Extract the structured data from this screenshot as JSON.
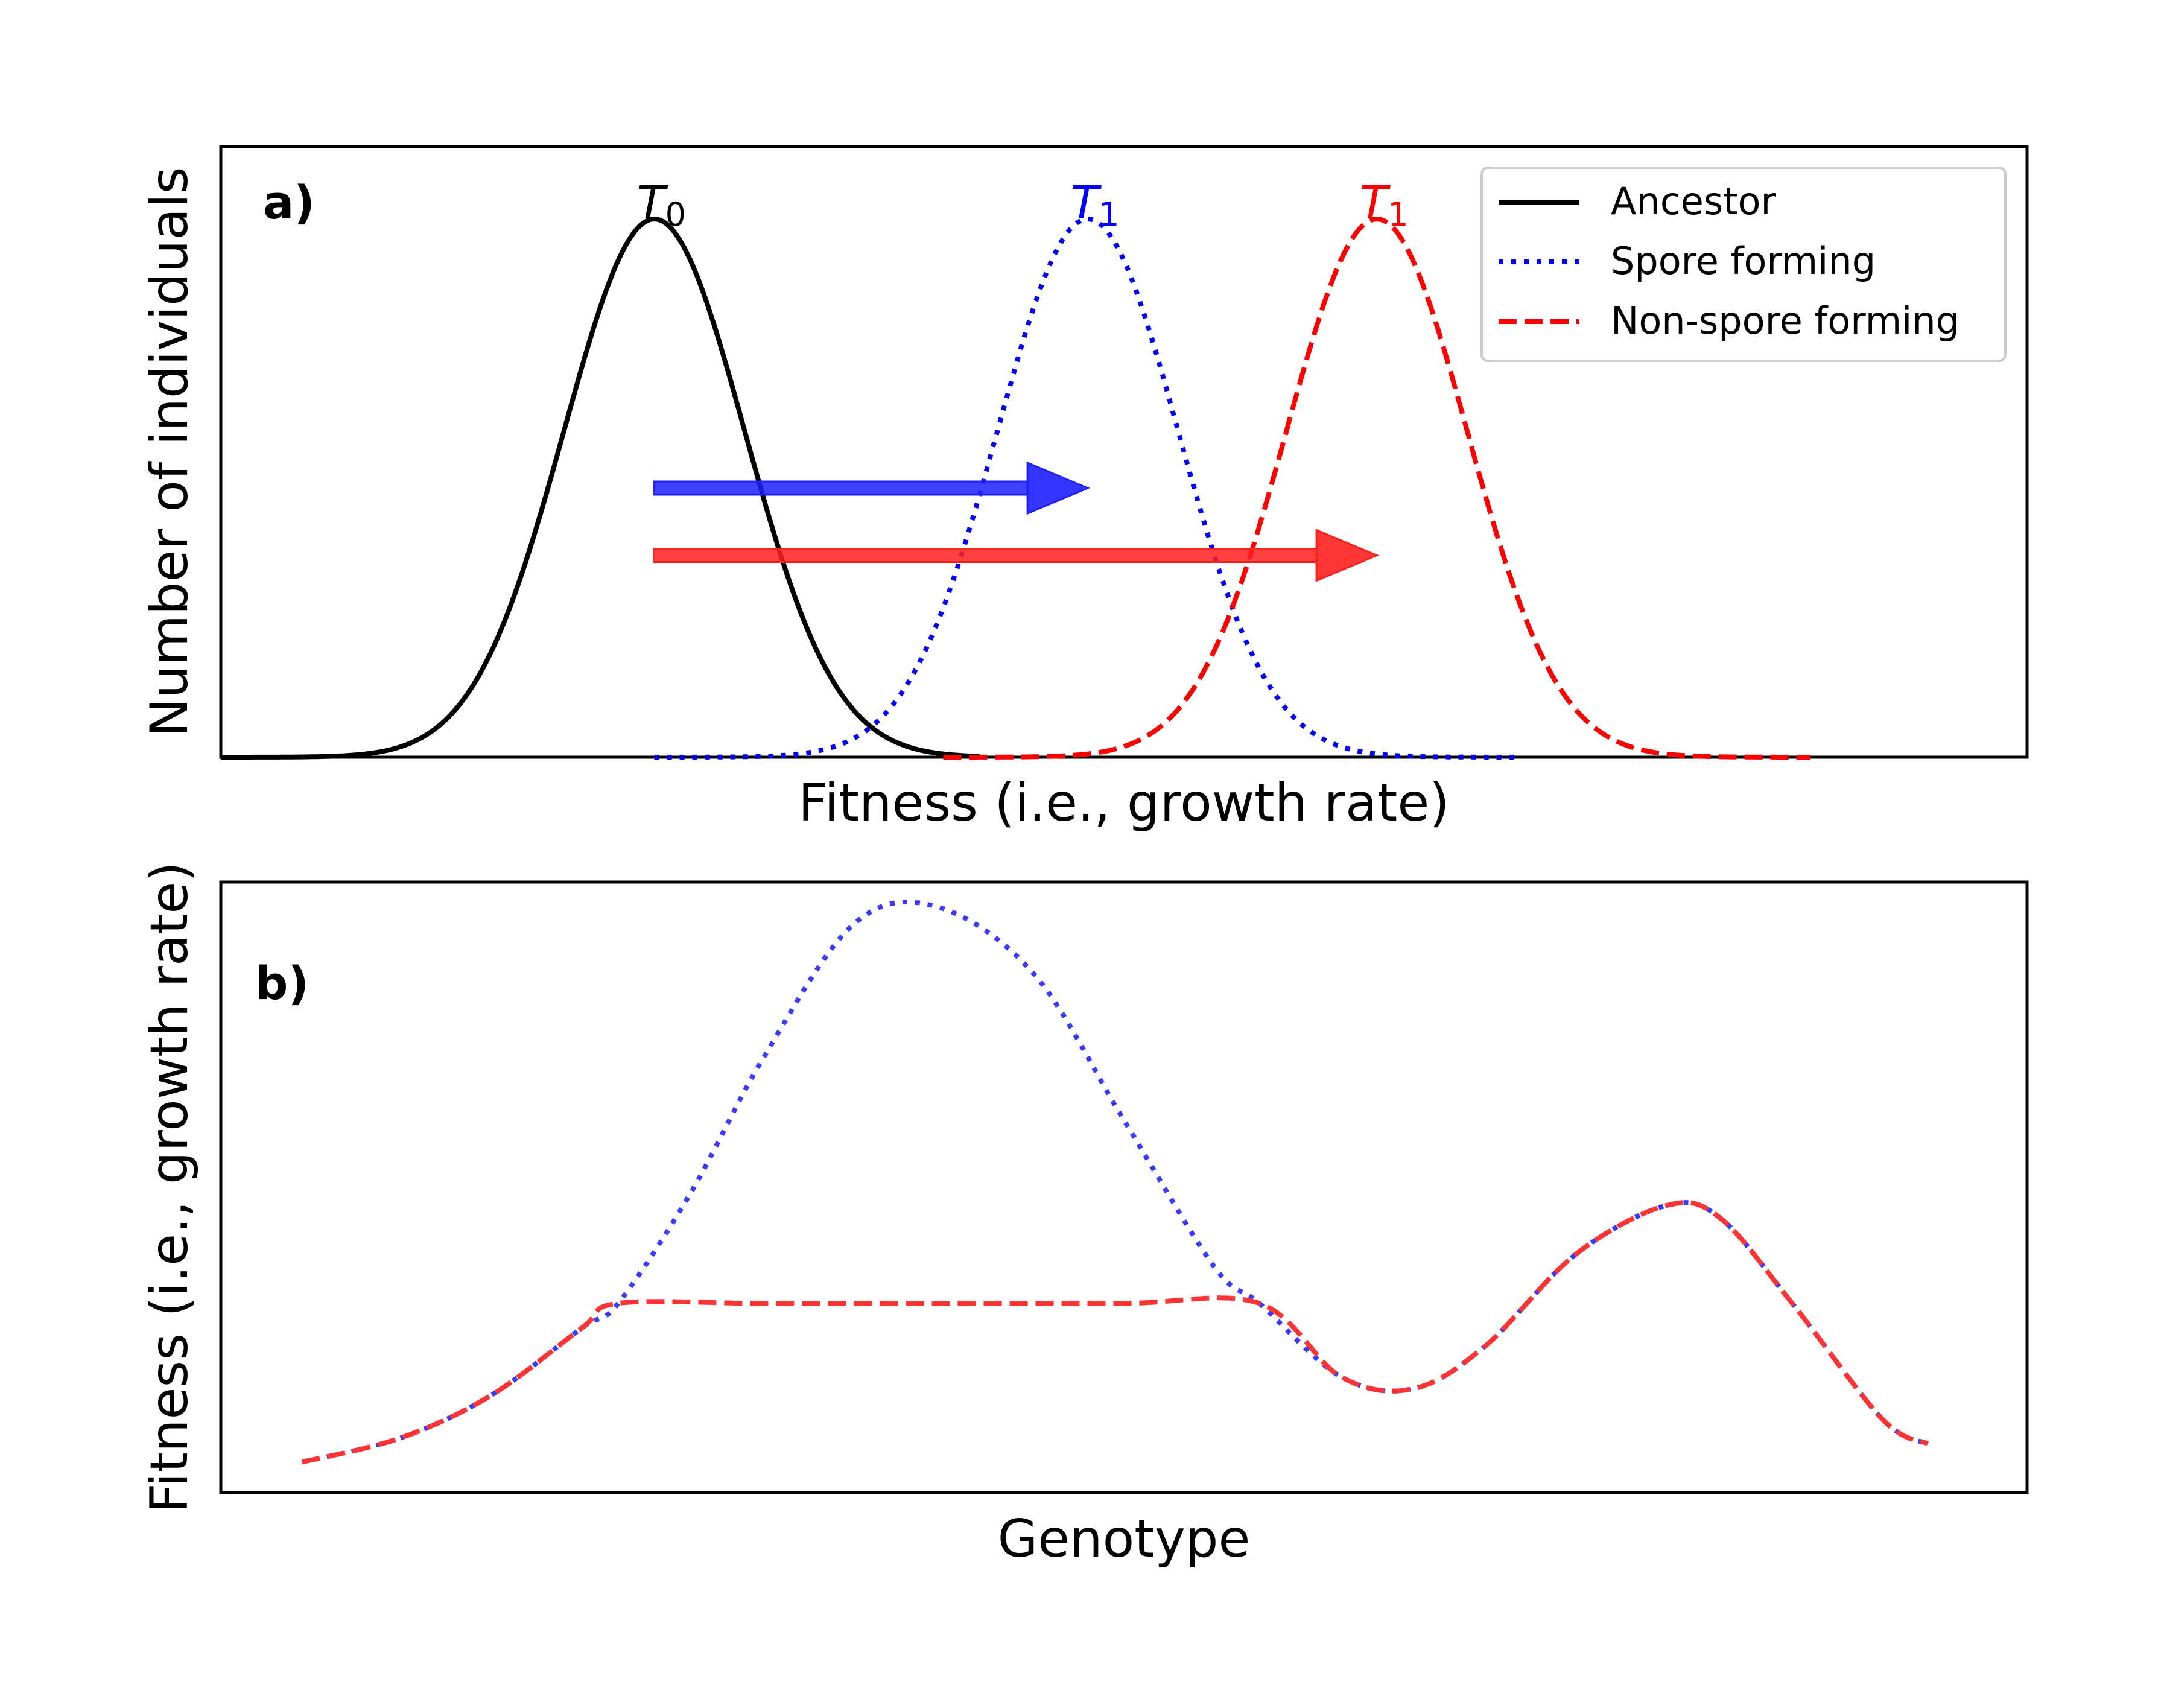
{
  "chart_data": [
    {
      "type": "line",
      "panel_label": "a)",
      "xlabel": "Fitness (i.e., growth rate)",
      "ylabel": "Number of individuals",
      "xlim": [
        0,
        10
      ],
      "ylim": [
        0,
        1.0
      ],
      "xticks": false,
      "yticks": false,
      "grid": false,
      "legend": {
        "position": "top-right",
        "entries": [
          {
            "name": "Ancestor",
            "color": "#000000",
            "style": "solid"
          },
          {
            "name": "Spore forming",
            "color": "#0000ff",
            "style": "dotted"
          },
          {
            "name": "Non-spore forming",
            "color": "#ff0000",
            "style": "dashed"
          }
        ]
      },
      "series": [
        {
          "name": "Ancestor",
          "color": "#000000",
          "style": "solid",
          "peak_x": 2.4,
          "peak_y": 1.0,
          "sd": 0.5,
          "x_range": [
            0,
            4.2
          ]
        },
        {
          "name": "Spore forming",
          "color": "#0000ff",
          "style": "dotted",
          "peak_x": 4.8,
          "peak_y": 1.0,
          "sd": 0.5,
          "x_range": [
            2.4,
            7.2
          ]
        },
        {
          "name": "Non-spore forming",
          "color": "#ff0000",
          "style": "dashed",
          "peak_x": 6.4,
          "peak_y": 1.0,
          "sd": 0.5,
          "x_range": [
            4.0,
            8.8
          ]
        }
      ],
      "peak_labels": [
        {
          "text": "T",
          "subscript": "0",
          "x": 2.4,
          "color": "#000000"
        },
        {
          "text": "T",
          "subscript": "1",
          "x": 4.8,
          "color": "#0000ff"
        },
        {
          "text": "T",
          "subscript": "1",
          "x": 6.4,
          "color": "#ff0000"
        }
      ],
      "arrows": [
        {
          "from_x": 2.4,
          "to_x": 4.8,
          "y": 0.5,
          "color": "#1f1fff"
        },
        {
          "from_x": 2.4,
          "to_x": 6.4,
          "y": 0.375,
          "color": "#ff2020"
        }
      ]
    },
    {
      "type": "line",
      "panel_label": "b)",
      "xlabel": "Genotype",
      "ylabel": "Fitness (i.e., growth rate)",
      "xlim": [
        0,
        10
      ],
      "ylim": [
        0,
        1.0
      ],
      "xticks": false,
      "yticks": false,
      "grid": false,
      "series": [
        {
          "name": "Spore forming",
          "color": "#3a3aff",
          "style": "dotted",
          "x": [
            0.45,
            1.0,
            1.5,
            2.0,
            2.2,
            2.6,
            3.0,
            3.5,
            3.96,
            4.5,
            5.0,
            5.5,
            5.75,
            6.2,
            6.6,
            7.0,
            7.5,
            8.0,
            8.3,
            8.7,
            9.2,
            9.45
          ],
          "y": [
            0.05,
            0.09,
            0.16,
            0.27,
            0.31,
            0.49,
            0.71,
            0.93,
            0.96,
            0.85,
            0.61,
            0.37,
            0.31,
            0.19,
            0.17,
            0.24,
            0.39,
            0.47,
            0.45,
            0.31,
            0.12,
            0.08
          ]
        },
        {
          "name": "Non-spore forming",
          "color": "#ff3333",
          "style": "dashed",
          "x": [
            0.45,
            1.0,
            1.5,
            2.0,
            2.2,
            3.0,
            4.0,
            5.0,
            5.75,
            6.2,
            6.6,
            7.0,
            7.5,
            8.0,
            8.3,
            8.7,
            9.2,
            9.45
          ],
          "y": [
            0.05,
            0.09,
            0.16,
            0.27,
            0.31,
            0.31,
            0.31,
            0.31,
            0.31,
            0.19,
            0.17,
            0.24,
            0.39,
            0.47,
            0.45,
            0.31,
            0.12,
            0.08
          ]
        }
      ]
    }
  ]
}
